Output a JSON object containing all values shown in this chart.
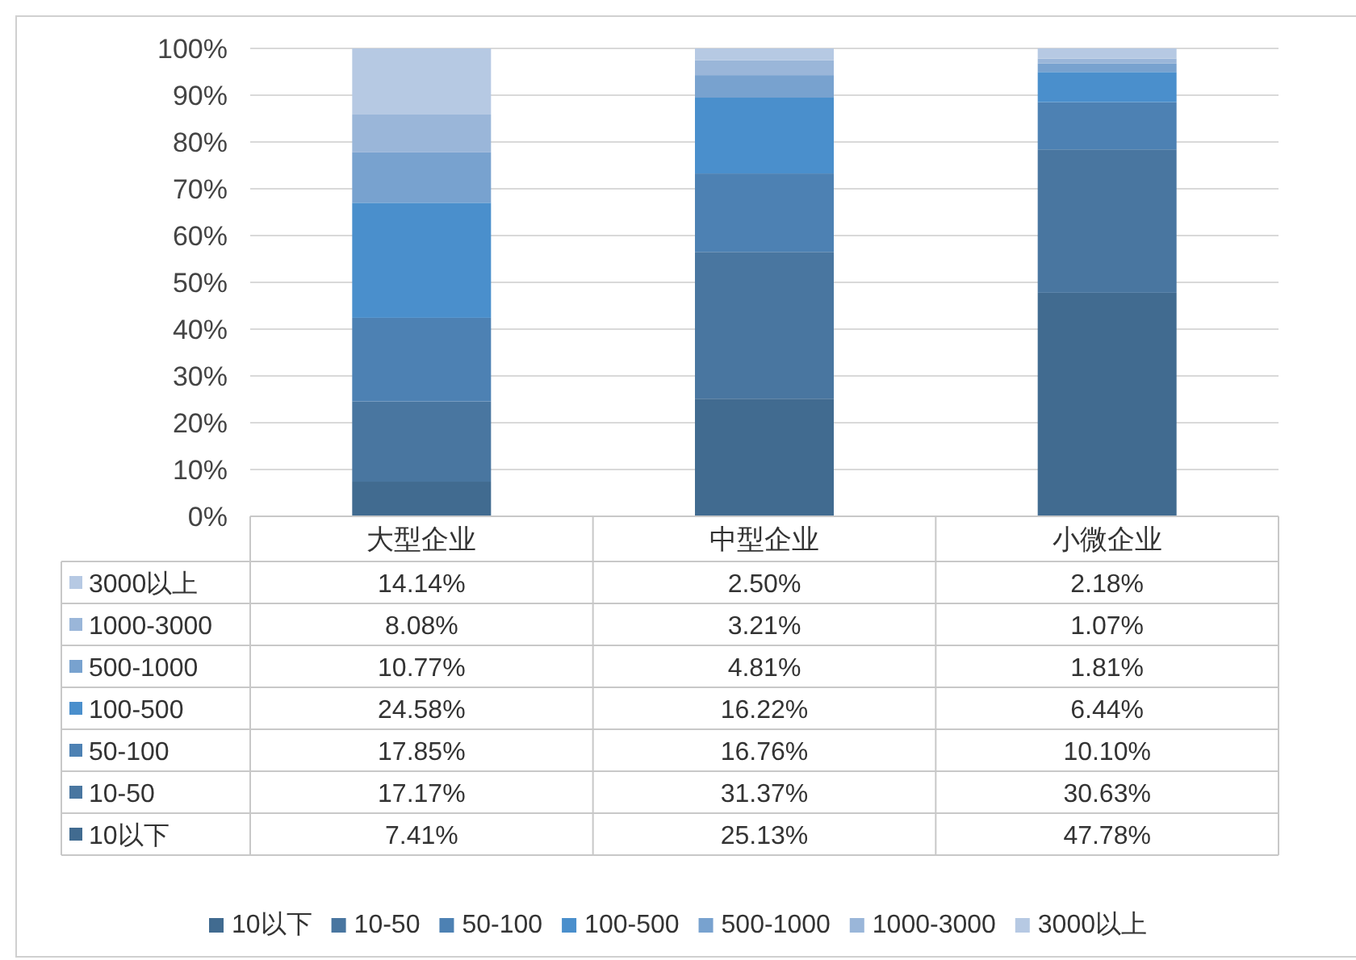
{
  "chart_data": {
    "type": "bar",
    "stacked": true,
    "categories": [
      "大型企业",
      "中型企业",
      "小微企业"
    ],
    "series": [
      {
        "name": "10以下",
        "color": "#416b90",
        "values": [
          7.41,
          25.13,
          47.78
        ],
        "value_labels": [
          "7.41%",
          "25.13%",
          "47.78%"
        ]
      },
      {
        "name": "10-50",
        "color": "#4976a0",
        "values": [
          17.17,
          31.37,
          30.63
        ],
        "value_labels": [
          "17.17%",
          "31.37%",
          "30.63%"
        ]
      },
      {
        "name": "50-100",
        "color": "#4d81b3",
        "values": [
          17.85,
          16.76,
          10.1
        ],
        "value_labels": [
          "17.85%",
          "16.76%",
          "10.10%"
        ]
      },
      {
        "name": "100-500",
        "color": "#4a8fcc",
        "values": [
          24.58,
          16.22,
          6.44
        ],
        "value_labels": [
          "24.58%",
          "16.22%",
          "6.44%"
        ]
      },
      {
        "name": "500-1000",
        "color": "#78a2cf",
        "values": [
          10.77,
          4.81,
          1.81
        ],
        "value_labels": [
          "10.77%",
          "4.81%",
          "1.81%"
        ]
      },
      {
        "name": "1000-3000",
        "color": "#9ab6d9",
        "values": [
          8.08,
          3.21,
          1.07
        ],
        "value_labels": [
          "8.08%",
          "3.21%",
          "1.07%"
        ]
      },
      {
        "name": "3000以上",
        "color": "#b6c9e3",
        "values": [
          14.14,
          2.5,
          2.18
        ],
        "value_labels": [
          "14.14%",
          "2.50%",
          "2.18%"
        ]
      }
    ],
    "ylim": [
      0,
      100
    ],
    "yticks": [
      {
        "value": 0,
        "label": "0%"
      },
      {
        "value": 10,
        "label": "10%"
      },
      {
        "value": 20,
        "label": "20%"
      },
      {
        "value": 30,
        "label": "30%"
      },
      {
        "value": 40,
        "label": "40%"
      },
      {
        "value": 50,
        "label": "50%"
      },
      {
        "value": 60,
        "label": "60%"
      },
      {
        "value": 70,
        "label": "70%"
      },
      {
        "value": 80,
        "label": "80%"
      },
      {
        "value": 90,
        "label": "90%"
      },
      {
        "value": 100,
        "label": "100%"
      }
    ],
    "grid": "y",
    "legend": "bottom"
  }
}
